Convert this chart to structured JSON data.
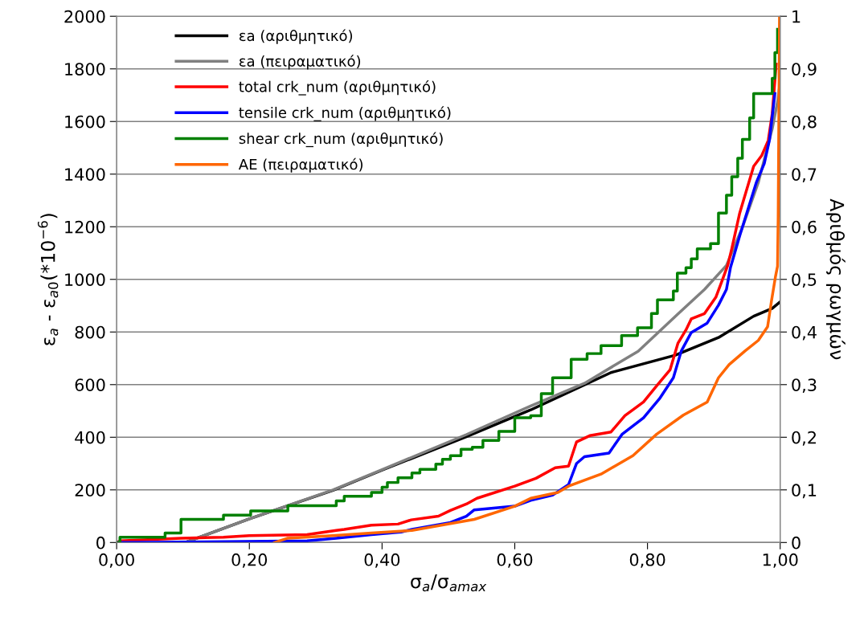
{
  "chart_data": {
    "type": "line",
    "xlabel": "σ$_{a}$/σ$_{amax}$",
    "ylabel": "ε$_{a}$ - ε$_{a0}$(*10$^{−6}$)",
    "y2label": "Αριθμός ρωγμών",
    "xlim": [
      0,
      1
    ],
    "xticks": [
      {
        "value": 0,
        "label": "0,00"
      },
      {
        "value": 0.2,
        "label": "0,20"
      },
      {
        "value": 0.4,
        "label": "0,40"
      },
      {
        "value": 0.6,
        "label": "0,60"
      },
      {
        "value": 0.8,
        "label": "0,80"
      },
      {
        "value": 1,
        "label": "1,00"
      }
    ],
    "ylim": [
      0,
      2000
    ],
    "yticks": [
      0,
      200,
      400,
      600,
      800,
      1000,
      1200,
      1400,
      1600,
      1800,
      2000
    ],
    "y2lim": [
      0,
      1
    ],
    "y2ticks": [
      0,
      {
        "value": 0.1,
        "label": "0,1"
      },
      {
        "value": 0.2,
        "label": "0,2"
      },
      {
        "value": 0.3,
        "label": "0,3"
      },
      {
        "value": 0.4,
        "label": "0,4"
      },
      {
        "value": 0.5,
        "label": "0,5"
      },
      {
        "value": 0.6,
        "label": "0,6"
      },
      {
        "value": 0.7,
        "label": "0,7"
      },
      {
        "value": 0.8,
        "label": "0,8"
      },
      {
        "value": 0.9,
        "label": "0,9"
      },
      1
    ],
    "grid": "y",
    "legend": "top left",
    "series": [
      {
        "name": "εa (αριθμητικό)",
        "color": "#000000",
        "x": [
          0.103,
          0.2,
          0.326,
          0.4,
          0.527,
          0.624,
          0.745,
          0.842,
          0.907,
          0.96,
          0.988,
          1.0
        ],
        "values": [
          0,
          90,
          198,
          275,
          402,
          504,
          646,
          712,
          779,
          860,
          890,
          915
        ]
      },
      {
        "name": "εa (πειραματικό)",
        "color": "#808080",
        "x": [
          0.103,
          0.2,
          0.326,
          0.4,
          0.527,
          0.624,
          0.705,
          0.786,
          0.846,
          0.886,
          0.919,
          0.943,
          0.967,
          0.988,
          0.996,
          1.0
        ],
        "values": [
          0,
          90,
          200,
          277,
          410,
          519,
          605,
          727,
          869,
          962,
          1053,
          1197,
          1368,
          1572,
          1675,
          1750
        ]
      },
      {
        "name": "total crk_num (αριθμητικό)",
        "color": "#ff0000",
        "axis": "y2",
        "x": [
          0,
          0.005,
          0.097,
          0.161,
          0.2,
          0.287,
          0.331,
          0.343,
          0.384,
          0.424,
          0.444,
          0.485,
          0.503,
          0.527,
          0.543,
          0.6,
          0.632,
          0.661,
          0.681,
          0.693,
          0.713,
          0.745,
          0.766,
          0.794,
          0.814,
          0.834,
          0.846,
          0.858,
          0.866,
          0.886,
          0.903,
          0.912,
          0.921,
          0.927,
          0.939,
          0.96,
          0.972,
          0.982,
          0.988,
          0.994
        ],
        "values": [
          0,
          0.003,
          0.008,
          0.01,
          0.013,
          0.015,
          0.023,
          0.025,
          0.033,
          0.035,
          0.043,
          0.05,
          0.061,
          0.073,
          0.084,
          0.107,
          0.122,
          0.142,
          0.145,
          0.191,
          0.203,
          0.21,
          0.241,
          0.267,
          0.298,
          0.328,
          0.379,
          0.404,
          0.425,
          0.435,
          0.466,
          0.496,
          0.527,
          0.558,
          0.626,
          0.715,
          0.735,
          0.764,
          0.815,
          0.909
        ]
      },
      {
        "name": "tensile crk_num (αριθμητικό)",
        "color": "#0000ff",
        "axis": "y2",
        "x": [
          0,
          0.287,
          0.331,
          0.384,
          0.429,
          0.445,
          0.503,
          0.527,
          0.539,
          0.6,
          0.624,
          0.657,
          0.681,
          0.693,
          0.705,
          0.742,
          0.762,
          0.794,
          0.818,
          0.839,
          0.851,
          0.866,
          0.89,
          0.907,
          0.919,
          0.925,
          0.939,
          0.964,
          0.976,
          0.984,
          0.992
        ],
        "values": [
          0,
          0.003,
          0.008,
          0.015,
          0.02,
          0.025,
          0.038,
          0.05,
          0.062,
          0.069,
          0.08,
          0.09,
          0.11,
          0.15,
          0.163,
          0.17,
          0.206,
          0.237,
          0.273,
          0.313,
          0.364,
          0.399,
          0.417,
          0.451,
          0.481,
          0.522,
          0.583,
          0.684,
          0.72,
          0.766,
          0.853
        ]
      },
      {
        "name": "shear crk_num (αριθμητικό)",
        "color": "#008000",
        "axis": "y2",
        "type": "step",
        "x": [
          0,
          0.005,
          0.073,
          0.097,
          0.161,
          0.202,
          0.258,
          0.331,
          0.343,
          0.384,
          0.4,
          0.408,
          0.424,
          0.445,
          0.457,
          0.481,
          0.491,
          0.503,
          0.519,
          0.536,
          0.552,
          0.576,
          0.6,
          0.624,
          0.64,
          0.657,
          0.685,
          0.709,
          0.73,
          0.761,
          0.785,
          0.806,
          0.815,
          0.839,
          0.845,
          0.858,
          0.866,
          0.875,
          0.895,
          0.907,
          0.919,
          0.927,
          0.936,
          0.943,
          0.954,
          0.96,
          0.988,
          0.992,
          0.996
        ],
        "values": [
          0,
          0.01,
          0.018,
          0.044,
          0.052,
          0.06,
          0.07,
          0.079,
          0.088,
          0.095,
          0.105,
          0.114,
          0.123,
          0.132,
          0.139,
          0.149,
          0.158,
          0.165,
          0.177,
          0.181,
          0.194,
          0.211,
          0.237,
          0.241,
          0.283,
          0.313,
          0.348,
          0.359,
          0.374,
          0.393,
          0.408,
          0.435,
          0.461,
          0.478,
          0.512,
          0.522,
          0.539,
          0.558,
          0.568,
          0.626,
          0.66,
          0.695,
          0.73,
          0.766,
          0.807,
          0.853,
          0.882,
          0.931,
          0.975
        ]
      },
      {
        "name": "AE (πειραματικό)",
        "color": "#ff6600",
        "axis": "y2",
        "x": [
          0.238,
          0.257,
          0.326,
          0.384,
          0.445,
          0.503,
          0.539,
          0.6,
          0.624,
          0.665,
          0.681,
          0.73,
          0.778,
          0.814,
          0.854,
          0.89,
          0.907,
          0.923,
          0.947,
          0.967,
          0.981,
          0.987,
          0.993,
          0.996,
          0.997,
          0.999
        ],
        "values": [
          0,
          0.008,
          0.013,
          0.018,
          0.023,
          0.036,
          0.044,
          0.069,
          0.084,
          0.095,
          0.107,
          0.13,
          0.165,
          0.206,
          0.242,
          0.267,
          0.313,
          0.338,
          0.364,
          0.384,
          0.41,
          0.46,
          0.506,
          0.525,
          0.62,
          1.0
        ]
      }
    ]
  }
}
